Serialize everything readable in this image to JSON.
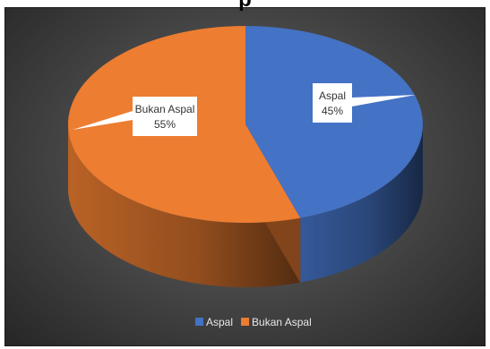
{
  "chart_data": {
    "type": "pie",
    "title": "",
    "categories": [
      "Aspal",
      "Bukan Aspal"
    ],
    "values": [
      45,
      55
    ],
    "data_labels": [
      {
        "category": "Aspal",
        "value": "45%"
      },
      {
        "category": "Bukan Aspal",
        "value": "55%"
      }
    ],
    "colors": {
      "Aspal": "#4472c4",
      "Bukan Aspal": "#ed7d31"
    },
    "legend": {
      "placement": "bottom",
      "entries": [
        "Aspal",
        "Bukan Aspal"
      ]
    },
    "three_d": true,
    "background": "#4a4a4a"
  }
}
